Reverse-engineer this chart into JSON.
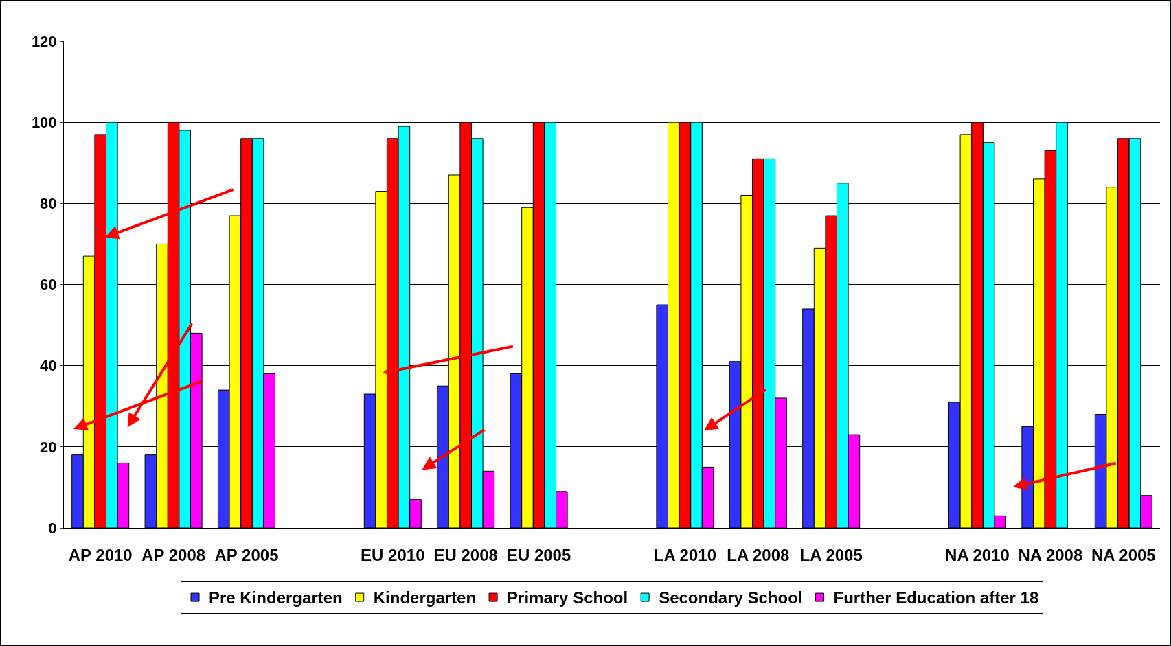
{
  "chart_data": {
    "type": "bar",
    "categories": [
      "AP 2010",
      "AP 2008",
      "AP 2005",
      null,
      "EU 2010",
      "EU 2008",
      "EU 2005",
      null,
      "LA 2010",
      "LA 2008",
      "LA 2005",
      null,
      "NA 2010",
      "NA 2008",
      "NA 2005"
    ],
    "series": [
      {
        "name": "Pre Kindergarten",
        "color": "#3333ff",
        "values": [
          18,
          18,
          34,
          null,
          33,
          35,
          38,
          null,
          55,
          41,
          54,
          null,
          31,
          25,
          28
        ]
      },
      {
        "name": "Kindergarten",
        "color": "#ffff00",
        "values": [
          67,
          70,
          77,
          null,
          83,
          87,
          79,
          null,
          100,
          82,
          69,
          null,
          97,
          86,
          84
        ]
      },
      {
        "name": "Primary School",
        "color": "#ff0000",
        "values": [
          97,
          100,
          96,
          null,
          96,
          100,
          100,
          null,
          100,
          91,
          77,
          null,
          100,
          93,
          96
        ]
      },
      {
        "name": "Secondary School",
        "color": "#00ffff",
        "values": [
          100,
          98,
          96,
          null,
          99,
          96,
          100,
          null,
          100,
          91,
          85,
          null,
          95,
          100,
          96
        ]
      },
      {
        "name": "Further Education after 18",
        "color": "#ff00ff",
        "values": [
          16,
          48,
          38,
          null,
          7,
          14,
          9,
          null,
          15,
          32,
          23,
          null,
          3,
          null,
          8
        ]
      }
    ],
    "ylim": [
      0,
      120
    ],
    "yticks": [
      0,
      20,
      40,
      60,
      80,
      100,
      120
    ],
    "grid": "y",
    "legend": "bottom"
  }
}
